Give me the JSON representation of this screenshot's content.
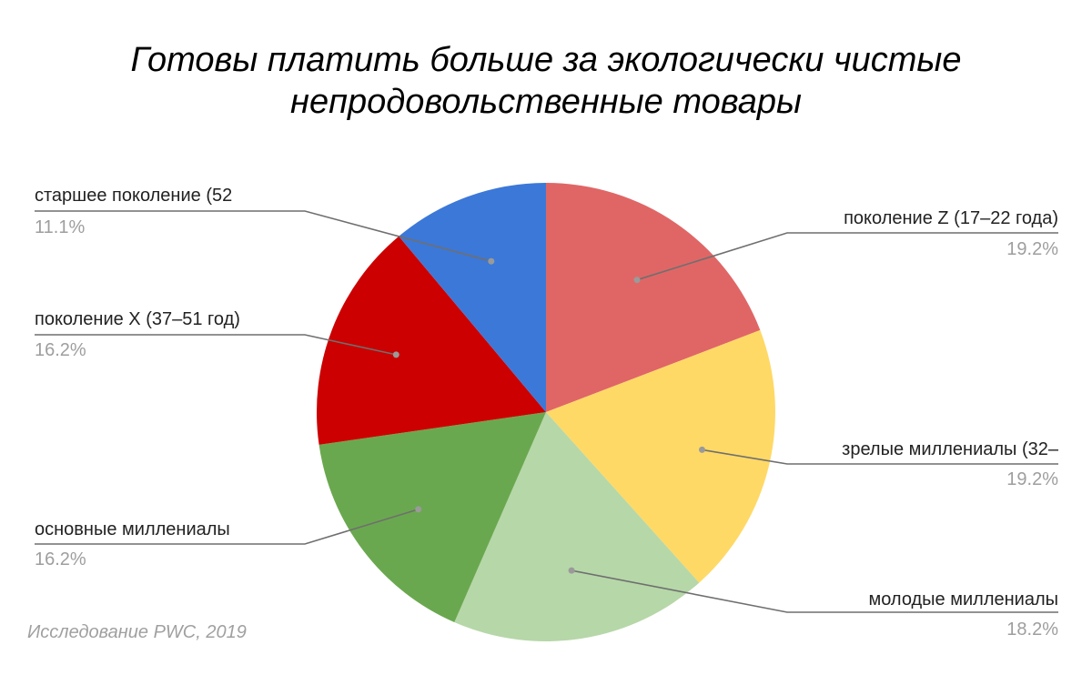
{
  "chart_data": {
    "type": "pie",
    "title_lines": [
      "Готовы платить больше за экологически чистые",
      "непродовольственные товары"
    ],
    "source": "Исследование PWC, 2019",
    "start": "top",
    "direction": "clockwise",
    "slices": [
      {
        "label": "поколение Z (17–22 года)",
        "value": 19.2,
        "percent_label": "19.2%",
        "color": "#e06666",
        "label_side": "right"
      },
      {
        "label": "зрелые миллениалы (32–",
        "value": 19.2,
        "percent_label": "19.2%",
        "color": "#ffd966",
        "label_side": "right"
      },
      {
        "label": "молодые миллениалы",
        "value": 18.2,
        "percent_label": "18.2%",
        "color": "#b6d7a8",
        "label_side": "right"
      },
      {
        "label": "основные миллениалы",
        "value": 16.2,
        "percent_label": "16.2%",
        "color": "#6aa84f",
        "label_side": "left"
      },
      {
        "label": "поколение X (37–51 год)",
        "value": 16.2,
        "percent_label": "16.2%",
        "color": "#cc0000",
        "label_side": "left"
      },
      {
        "label": "старшее поколение (52",
        "value": 11.1,
        "percent_label": "11.1%",
        "color": "#3c78d8",
        "label_side": "left"
      }
    ]
  }
}
